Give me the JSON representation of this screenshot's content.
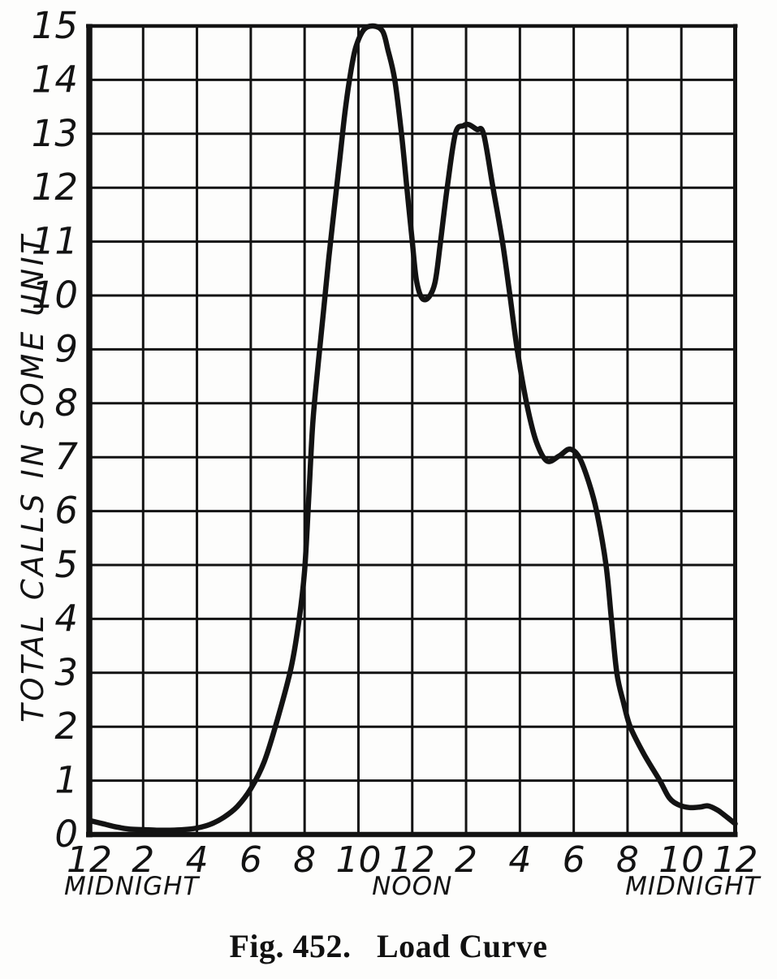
{
  "figure": {
    "caption": "Fig. 452.   Load Curve"
  },
  "style": {
    "ink": "#131313",
    "paper": "#fdfdfc"
  },
  "chart_data": {
    "type": "line",
    "title": "Load Curve",
    "ylabel": "TOTAL CALLS IN SOME UNIT",
    "xlabel": "",
    "xlim": [
      0,
      24
    ],
    "ylim": [
      0,
      15
    ],
    "grid": true,
    "x_ticks": [
      {
        "hour": 0,
        "label": "12"
      },
      {
        "hour": 2,
        "label": "2"
      },
      {
        "hour": 4,
        "label": "4"
      },
      {
        "hour": 6,
        "label": "6"
      },
      {
        "hour": 8,
        "label": "8"
      },
      {
        "hour": 10,
        "label": "10"
      },
      {
        "hour": 12,
        "label": "12"
      },
      {
        "hour": 14,
        "label": "2"
      },
      {
        "hour": 16,
        "label": "4"
      },
      {
        "hour": 18,
        "label": "6"
      },
      {
        "hour": 20,
        "label": "8"
      },
      {
        "hour": 22,
        "label": "10"
      },
      {
        "hour": 24,
        "label": "12"
      }
    ],
    "x_annotations": [
      {
        "hour": 0,
        "label": "MIDNIGHT",
        "align": "start"
      },
      {
        "hour": 12,
        "label": "NOON",
        "align": "middle"
      },
      {
        "hour": 24,
        "label": "MIDNIGHT",
        "align": "end"
      }
    ],
    "y_ticks": [
      {
        "value": 0,
        "label": "0"
      },
      {
        "value": 1,
        "label": "1"
      },
      {
        "value": 2,
        "label": "2"
      },
      {
        "value": 3,
        "label": "3"
      },
      {
        "value": 4,
        "label": "4"
      },
      {
        "value": 5,
        "label": "5"
      },
      {
        "value": 6,
        "label": "6"
      },
      {
        "value": 7,
        "label": "7"
      },
      {
        "value": 8,
        "label": "8"
      },
      {
        "value": 9,
        "label": "9"
      },
      {
        "value": 10,
        "label": "10"
      },
      {
        "value": 11,
        "label": "11"
      },
      {
        "value": 12,
        "label": "12"
      },
      {
        "value": 13,
        "label": "13"
      },
      {
        "value": 14,
        "label": "14"
      },
      {
        "value": 15,
        "label": "15"
      }
    ],
    "series": [
      {
        "name": "total-calls-load-curve",
        "points": [
          [
            0,
            0.26
          ],
          [
            0.5,
            0.2
          ],
          [
            1,
            0.14
          ],
          [
            1.5,
            0.1
          ],
          [
            2,
            0.09
          ],
          [
            2.5,
            0.08
          ],
          [
            3,
            0.08
          ],
          [
            3.5,
            0.09
          ],
          [
            4,
            0.12
          ],
          [
            4.5,
            0.19
          ],
          [
            5,
            0.32
          ],
          [
            5.5,
            0.52
          ],
          [
            6,
            0.85
          ],
          [
            6.5,
            1.35
          ],
          [
            7,
            2.15
          ],
          [
            7.5,
            3.1
          ],
          [
            7.8,
            4.0
          ],
          [
            8.0,
            4.9
          ],
          [
            8.15,
            6.2
          ],
          [
            8.3,
            7.6
          ],
          [
            8.5,
            8.7
          ],
          [
            8.7,
            9.7
          ],
          [
            8.9,
            10.7
          ],
          [
            9.1,
            11.6
          ],
          [
            9.3,
            12.5
          ],
          [
            9.5,
            13.4
          ],
          [
            9.7,
            14.1
          ],
          [
            9.9,
            14.6
          ],
          [
            10.2,
            14.93
          ],
          [
            10.55,
            15.0
          ],
          [
            10.9,
            14.9
          ],
          [
            11.1,
            14.55
          ],
          [
            11.35,
            14.0
          ],
          [
            11.6,
            13.0
          ],
          [
            11.8,
            12.0
          ],
          [
            12.0,
            11.0
          ],
          [
            12.15,
            10.3
          ],
          [
            12.35,
            9.96
          ],
          [
            12.6,
            9.96
          ],
          [
            12.85,
            10.25
          ],
          [
            13.05,
            11.0
          ],
          [
            13.3,
            12.0
          ],
          [
            13.6,
            13.0
          ],
          [
            13.9,
            13.15
          ],
          [
            14.1,
            13.17
          ],
          [
            14.4,
            13.08
          ],
          [
            14.65,
            13.0
          ],
          [
            15.0,
            12.0
          ],
          [
            15.35,
            11.0
          ],
          [
            15.63,
            10.0
          ],
          [
            15.9,
            9.0
          ],
          [
            16.25,
            8.0
          ],
          [
            16.6,
            7.3
          ],
          [
            17.0,
            6.93
          ],
          [
            17.45,
            7.02
          ],
          [
            17.85,
            7.15
          ],
          [
            18.2,
            7.0
          ],
          [
            18.55,
            6.55
          ],
          [
            18.85,
            6.0
          ],
          [
            19.2,
            5.0
          ],
          [
            19.4,
            4.0
          ],
          [
            19.6,
            3.0
          ],
          [
            19.85,
            2.45
          ],
          [
            20.1,
            2.0
          ],
          [
            20.6,
            1.5
          ],
          [
            21.2,
            1.0
          ],
          [
            21.55,
            0.68
          ],
          [
            21.9,
            0.55
          ],
          [
            22.3,
            0.5
          ],
          [
            22.7,
            0.51
          ],
          [
            23.0,
            0.53
          ],
          [
            23.35,
            0.45
          ],
          [
            23.7,
            0.32
          ],
          [
            24,
            0.2
          ]
        ]
      }
    ]
  }
}
